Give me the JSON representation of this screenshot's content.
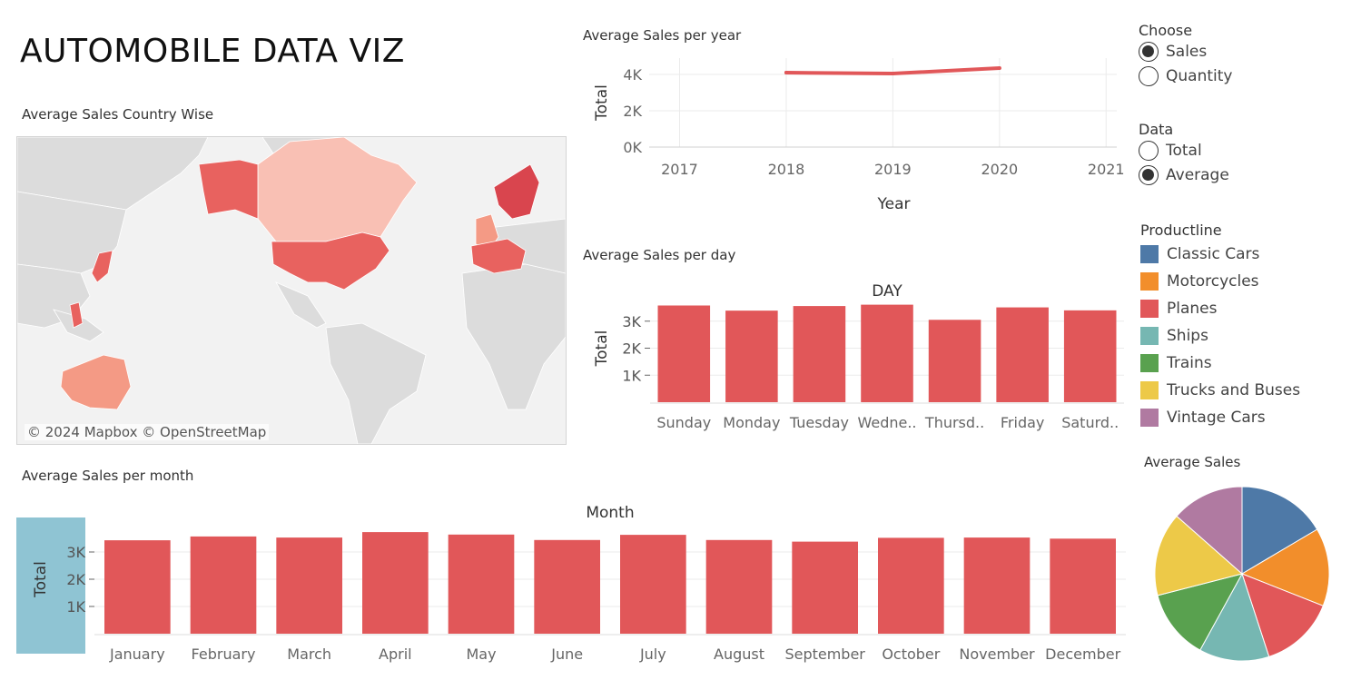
{
  "dashboard": {
    "title": "AUTOMOBILE DATA VIZ"
  },
  "map": {
    "title": "Average Sales Country Wise",
    "attribution": "© 2024 Mapbox © OpenStreetMap",
    "colors": {
      "low": "#f9c0b4",
      "mid": "#f49a85",
      "high": "#e8625f",
      "top": "#d9454e",
      "land": "#dcdcdc",
      "sea": "#f2f2f2"
    }
  },
  "chart_data": [
    {
      "id": "year",
      "type": "line",
      "title": "Average Sales  per year",
      "xlabel": "Year",
      "ylabel": "Total",
      "x_ticks": [
        "2017",
        "2018",
        "2019",
        "2020",
        "2021"
      ],
      "y_ticks": [
        "0K",
        "2K",
        "4K"
      ],
      "ylim": [
        0,
        4900
      ],
      "series": [
        {
          "x": [
            2018,
            2019,
            2020
          ],
          "values": [
            4100,
            4050,
            4350
          ]
        }
      ],
      "color": "#e15759"
    },
    {
      "id": "day",
      "type": "bar",
      "title": "Average Sales per day",
      "header": "DAY",
      "ylabel": "Total",
      "categories": [
        "Sunday",
        "Monday",
        "Tuesday",
        "Wedne..",
        "Thursd..",
        "Friday",
        "Saturd.."
      ],
      "values": [
        3580,
        3390,
        3560,
        3610,
        3050,
        3510,
        3400
      ],
      "y_ticks": [
        "1K",
        "2K",
        "3K"
      ],
      "ylim": [
        0,
        4000
      ],
      "color": "#e15759"
    },
    {
      "id": "month",
      "type": "bar",
      "title": "Average Sales per month",
      "header": "Month",
      "ylabel": "Total",
      "categories": [
        "January",
        "February",
        "March",
        "April",
        "May",
        "June",
        "July",
        "August",
        "September",
        "October",
        "November",
        "December"
      ],
      "values": [
        3430,
        3570,
        3530,
        3730,
        3640,
        3440,
        3630,
        3440,
        3380,
        3520,
        3530,
        3490
      ],
      "y_ticks": [
        "1K",
        "2K",
        "3K"
      ],
      "ylim": [
        0,
        4000
      ],
      "color": "#e15759",
      "axis_band_color": "#8fc4d3"
    },
    {
      "id": "pie",
      "type": "pie",
      "title": "Average Sales",
      "categories": [
        "Classic Cars",
        "Motorcycles",
        "Planes",
        "Ships",
        "Trains",
        "Trucks and Buses",
        "Vintage Cars"
      ],
      "values": [
        16.5,
        14.5,
        14,
        13,
        13,
        15.5,
        13.5
      ],
      "colors": [
        "#4e79a7",
        "#f28e2b",
        "#e15759",
        "#76b7b2",
        "#59a14f",
        "#edc948",
        "#b07aa1"
      ]
    }
  ],
  "controls": {
    "choose": {
      "label": "Choose",
      "options": [
        "Sales",
        "Quantity"
      ],
      "selected": "Sales"
    },
    "data": {
      "label": "Data",
      "options": [
        "Total",
        "Average"
      ],
      "selected": "Average"
    }
  },
  "productline": {
    "label": "Productline",
    "items": [
      {
        "name": "Classic Cars",
        "color": "#4e79a7"
      },
      {
        "name": "Motorcycles",
        "color": "#f28e2b"
      },
      {
        "name": "Planes",
        "color": "#e15759"
      },
      {
        "name": "Ships",
        "color": "#76b7b2"
      },
      {
        "name": "Trains",
        "color": "#59a14f"
      },
      {
        "name": "Trucks and Buses",
        "color": "#edc948"
      },
      {
        "name": "Vintage Cars",
        "color": "#b07aa1"
      }
    ]
  }
}
